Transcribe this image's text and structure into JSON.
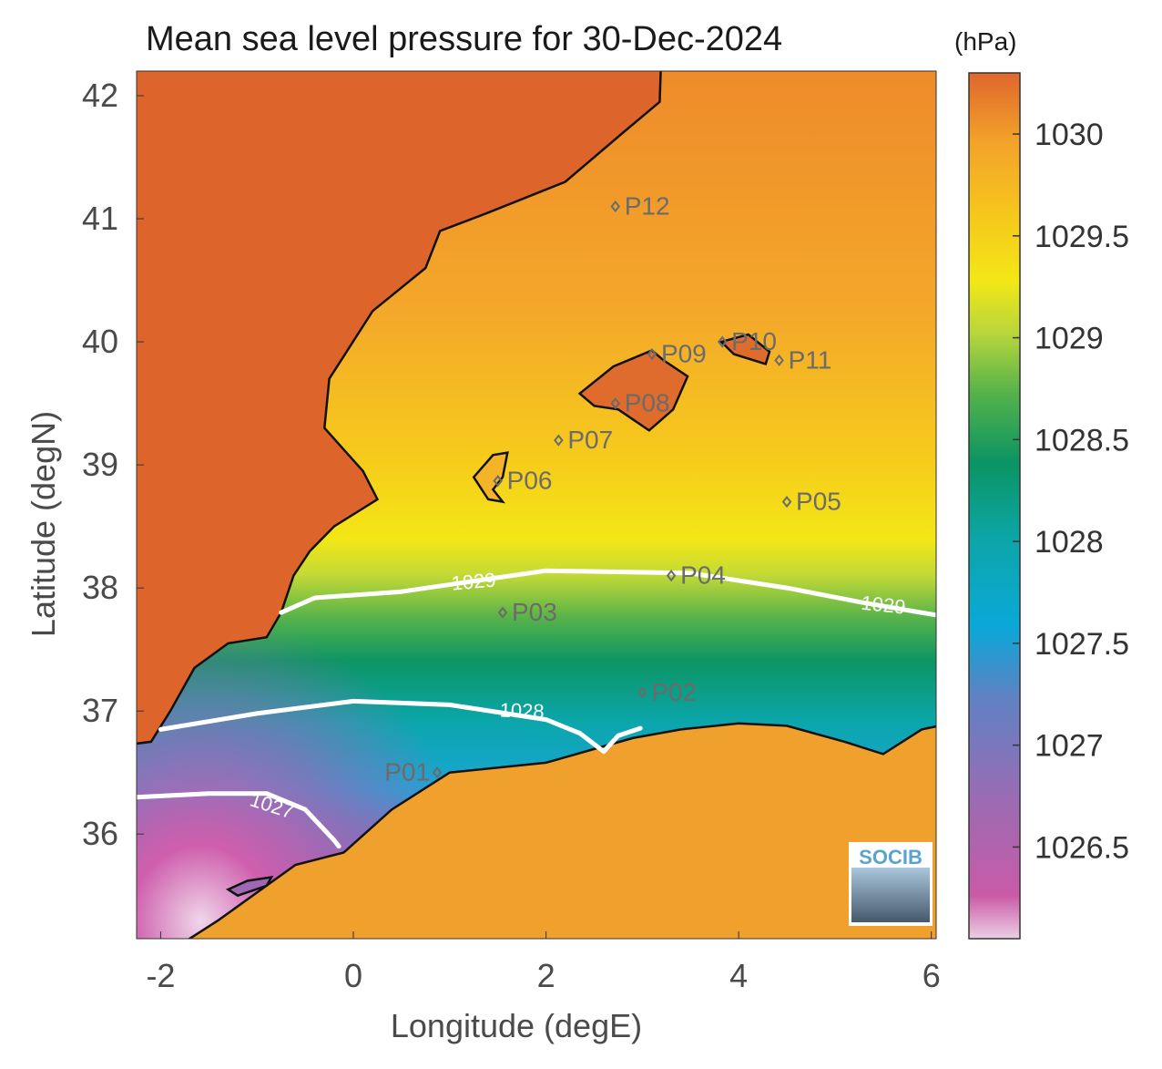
{
  "title": "Mean sea level pressure for 30-Dec-2024",
  "colorbar": {
    "unit": "(hPa)",
    "ticks": [
      "1030",
      "1029.5",
      "1029",
      "1028.5",
      "1028",
      "1027.5",
      "1027",
      "1026.5"
    ],
    "tick_values": [
      1030,
      1029.5,
      1029,
      1028.5,
      1028,
      1027.5,
      1027,
      1026.5
    ],
    "range": [
      1026.05,
      1030.3
    ],
    "colors": [
      "#e7cde1",
      "#c85fa8",
      "#9a6bb3",
      "#5f7ec2",
      "#06a7d6",
      "#0ca4a8",
      "#0c9466",
      "#4caf4a",
      "#b9d63a",
      "#f3e816",
      "#f7c81c",
      "#f4a529",
      "#e0672b"
    ]
  },
  "axes": {
    "xlabel": "Longitude (degE)",
    "ylabel": "Latitude (degN)",
    "xlim": [
      -2.25,
      6.05
    ],
    "ylim": [
      35.15,
      42.2
    ],
    "xticks": [
      "-2",
      "0",
      "2",
      "4",
      "6"
    ],
    "xtick_values": [
      -2,
      0,
      2,
      4,
      6
    ],
    "yticks": [
      "42",
      "41",
      "40",
      "39",
      "38",
      "37",
      "36"
    ],
    "ytick_values": [
      42,
      41,
      40,
      39,
      38,
      37,
      36
    ]
  },
  "chart_data": {
    "type": "heatmap",
    "title": "Mean sea level pressure for 30-Dec-2024",
    "xlabel": "Longitude (degE)",
    "ylabel": "Latitude (degN)",
    "units": "hPa",
    "contours": [
      {
        "label": "1029",
        "points": [
          [
            -0.75,
            37.8
          ],
          [
            -0.4,
            37.92
          ],
          [
            0.5,
            37.97
          ],
          [
            1.2,
            38.05
          ],
          [
            2.0,
            38.14
          ],
          [
            3.5,
            38.12
          ],
          [
            4.5,
            38.0
          ],
          [
            5.3,
            37.88
          ],
          [
            6.05,
            37.78
          ]
        ]
      },
      {
        "label": "1028",
        "points": [
          [
            -2.0,
            36.85
          ],
          [
            -1.0,
            36.98
          ],
          [
            0.0,
            37.08
          ],
          [
            1.0,
            37.05
          ],
          [
            2.0,
            36.93
          ],
          [
            2.35,
            36.82
          ],
          [
            2.6,
            36.67
          ],
          [
            2.75,
            36.8
          ],
          [
            2.98,
            36.86
          ]
        ]
      },
      {
        "label": "1027",
        "points": [
          [
            -2.25,
            36.3
          ],
          [
            -1.5,
            36.33
          ],
          [
            -0.9,
            36.33
          ],
          [
            -0.5,
            36.2
          ],
          [
            -0.2,
            35.95
          ],
          [
            -0.15,
            35.9
          ]
        ]
      }
    ],
    "stations": [
      {
        "name": "P01",
        "lon": 0.87,
        "lat": 36.5
      },
      {
        "name": "P02",
        "lon": 3.0,
        "lat": 37.15
      },
      {
        "name": "P03",
        "lon": 1.55,
        "lat": 37.8
      },
      {
        "name": "P04",
        "lon": 3.3,
        "lat": 38.1
      },
      {
        "name": "P05",
        "lon": 4.5,
        "lat": 38.7
      },
      {
        "name": "P06",
        "lon": 1.5,
        "lat": 38.87
      },
      {
        "name": "P07",
        "lon": 2.13,
        "lat": 39.2
      },
      {
        "name": "P08",
        "lon": 2.72,
        "lat": 39.5
      },
      {
        "name": "P09",
        "lon": 3.1,
        "lat": 39.9
      },
      {
        "name": "P10",
        "lon": 3.83,
        "lat": 40.0
      },
      {
        "name": "P11",
        "lon": 4.42,
        "lat": 39.85
      },
      {
        "name": "P12",
        "lon": 2.72,
        "lat": 41.1
      }
    ]
  },
  "logo": {
    "text": "SOCIB"
  }
}
